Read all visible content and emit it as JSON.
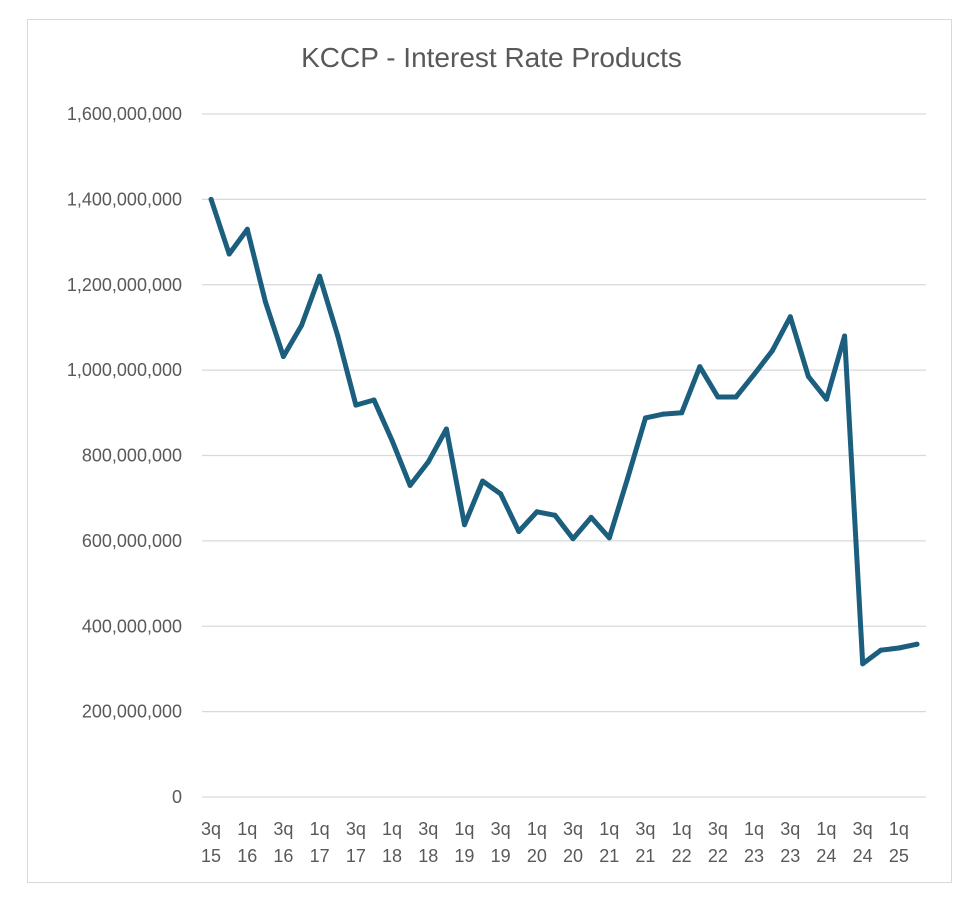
{
  "chart_data": {
    "type": "line",
    "title": "KCCP - Interest Rate Products",
    "xlabel": "",
    "ylabel": "",
    "ylim": [
      0,
      1600000000
    ],
    "y_ticks": [
      0,
      200000000,
      400000000,
      600000000,
      800000000,
      1000000000,
      1200000000,
      1400000000,
      1600000000
    ],
    "y_tick_labels": [
      "0",
      "200,000,000",
      "400,000,000",
      "600,000,000",
      "800,000,000",
      "1,000,000,000",
      "1,200,000,000",
      "1,400,000,000",
      "1,600,000,000"
    ],
    "grid": true,
    "legend": "none",
    "x_tick_labels": [
      [
        "3q",
        "15"
      ],
      [
        "1q",
        "16"
      ],
      [
        "3q",
        "16"
      ],
      [
        "1q",
        "17"
      ],
      [
        "3q",
        "17"
      ],
      [
        "1q",
        "18"
      ],
      [
        "3q",
        "18"
      ],
      [
        "1q",
        "19"
      ],
      [
        "3q",
        "19"
      ],
      [
        "1q",
        "20"
      ],
      [
        "3q",
        "20"
      ],
      [
        "1q",
        "21"
      ],
      [
        "3q",
        "21"
      ],
      [
        "1q",
        "22"
      ],
      [
        "3q",
        "22"
      ],
      [
        "1q",
        "23"
      ],
      [
        "3q",
        "23"
      ],
      [
        "1q",
        "24"
      ],
      [
        "3q",
        "24"
      ],
      [
        "1q",
        "25"
      ]
    ],
    "categories": [
      "3q15",
      "4q15",
      "1q16",
      "2q16",
      "3q16",
      "4q16",
      "1q17",
      "2q17",
      "3q17",
      "4q17",
      "1q18",
      "2q18",
      "3q18",
      "4q18",
      "1q19",
      "2q19",
      "3q19",
      "4q19",
      "1q20",
      "2q20",
      "3q20",
      "4q20",
      "1q21",
      "2q21",
      "3q21",
      "4q21",
      "1q22",
      "2q22",
      "3q22",
      "4q22",
      "1q23",
      "2q23",
      "3q23",
      "4q23",
      "1q24",
      "2q24",
      "3q24",
      "4q24",
      "1q25",
      "2q25"
    ],
    "series": [
      {
        "color": "#1b5e7d",
        "values": [
          1400000000,
          1272000000,
          1330000000,
          1160000000,
          1032000000,
          1105000000,
          1220000000,
          1080000000,
          918000000,
          930000000,
          835000000,
          730000000,
          785000000,
          862000000,
          638000000,
          740000000,
          710000000,
          622000000,
          668000000,
          660000000,
          605000000,
          655000000,
          607000000,
          745000000,
          888000000,
          897000000,
          900000000,
          1008000000,
          937000000,
          937000000,
          990000000,
          1045000000,
          1125000000,
          985000000,
          932000000,
          1080000000,
          312000000,
          344000000,
          349000000,
          358000000
        ]
      }
    ]
  }
}
